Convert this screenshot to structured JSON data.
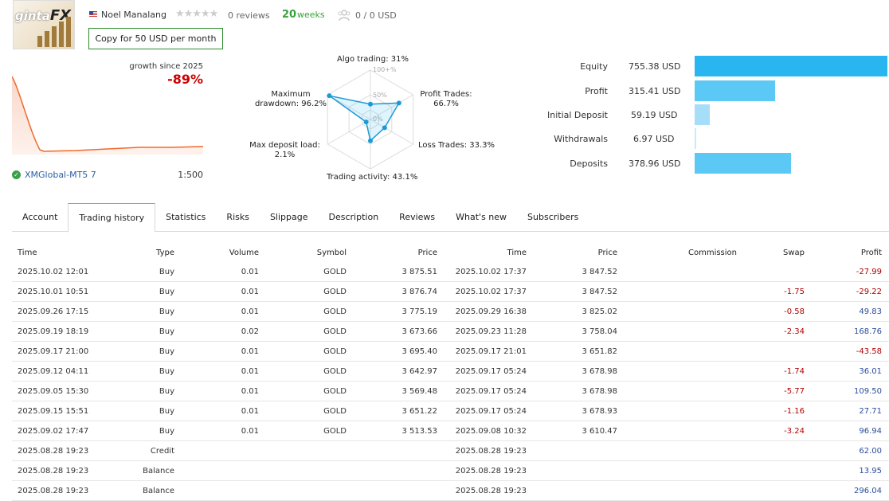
{
  "header": {
    "logo_text_a": "ginta",
    "logo_text_b": "FX",
    "author": "Noel Manalang",
    "stars": "★★★★★",
    "reviews": "0 reviews",
    "weeks_num": "20",
    "weeks_label": "weeks",
    "subscribers": "0 / 0 USD",
    "copy_button": "Copy for 50 USD per month"
  },
  "growth": {
    "label": "growth since 2025",
    "value": "-89%",
    "broker": "XMGlobal-MT5 7",
    "leverage": "1:500"
  },
  "radar": {
    "algo": "Algo trading: 31%",
    "profit_trades_1": "Profit Trades:",
    "profit_trades_2": "66.7%",
    "loss_trades": "Loss Trades: 33.3%",
    "activity": "Trading activity: 43.1%",
    "deposit_load_1": "Max deposit load:",
    "deposit_load_2": "2.1%",
    "drawdown_1": "Maximum",
    "drawdown_2": "drawdown: 96.2%",
    "tick_100": "100+%",
    "tick_50": "50%",
    "tick_0": "0%",
    "values": {
      "algo": 31,
      "profit_trades": 66.7,
      "loss_trades": 33.3,
      "activity": 43.1,
      "deposit_load": 2.1,
      "drawdown": 96.2
    }
  },
  "balance_bars": [
    {
      "label": "Equity",
      "value": "755.38 USD",
      "fraction": 1.0,
      "color": "#29b6f0"
    },
    {
      "label": "Profit",
      "value": "315.41 USD",
      "fraction": 0.417,
      "color": "#5cc8f5"
    },
    {
      "label": "Initial Deposit",
      "value": "59.19 USD",
      "fraction": 0.078,
      "color": "#a6def9"
    },
    {
      "label": "Withdrawals",
      "value": "6.97 USD",
      "fraction": 0.009,
      "color": "#c7ebfb"
    },
    {
      "label": "Deposits",
      "value": "378.96 USD",
      "fraction": 0.5,
      "color": "#5cc8f5"
    }
  ],
  "tabs": [
    "Account",
    "Trading history",
    "Statistics",
    "Risks",
    "Slippage",
    "Description",
    "Reviews",
    "What's new",
    "Subscribers"
  ],
  "table": {
    "headers": [
      "Time",
      "Type",
      "Volume",
      "Symbol",
      "Price",
      "Time",
      "Price",
      "Commission",
      "Swap",
      "Profit"
    ],
    "rows": [
      [
        "2025.10.02 12:01",
        "Buy",
        "0.01",
        "GOLD",
        "3 875.51",
        "2025.10.02 17:37",
        "3 847.52",
        "",
        "",
        "-27.99"
      ],
      [
        "2025.10.01 10:51",
        "Buy",
        "0.01",
        "GOLD",
        "3 876.74",
        "2025.10.02 17:37",
        "3 847.52",
        "",
        "-1.75",
        "-29.22"
      ],
      [
        "2025.09.26 17:15",
        "Buy",
        "0.01",
        "GOLD",
        "3 775.19",
        "2025.09.29 16:38",
        "3 825.02",
        "",
        "-0.58",
        "49.83"
      ],
      [
        "2025.09.19 18:19",
        "Buy",
        "0.02",
        "GOLD",
        "3 673.66",
        "2025.09.23 11:28",
        "3 758.04",
        "",
        "-2.34",
        "168.76"
      ],
      [
        "2025.09.17 21:00",
        "Buy",
        "0.01",
        "GOLD",
        "3 695.40",
        "2025.09.17 21:01",
        "3 651.82",
        "",
        "",
        "-43.58"
      ],
      [
        "2025.09.12 04:11",
        "Buy",
        "0.01",
        "GOLD",
        "3 642.97",
        "2025.09.17 05:24",
        "3 678.98",
        "",
        "-1.74",
        "36.01"
      ],
      [
        "2025.09.05 15:30",
        "Buy",
        "0.01",
        "GOLD",
        "3 569.48",
        "2025.09.17 05:24",
        "3 678.98",
        "",
        "-5.77",
        "109.50"
      ],
      [
        "2025.09.15 15:51",
        "Buy",
        "0.01",
        "GOLD",
        "3 651.22",
        "2025.09.17 05:24",
        "3 678.93",
        "",
        "-1.16",
        "27.71"
      ],
      [
        "2025.09.02 17:47",
        "Buy",
        "0.01",
        "GOLD",
        "3 513.53",
        "2025.09.08 10:32",
        "3 610.47",
        "",
        "-3.24",
        "96.94"
      ],
      [
        "2025.08.28 19:23",
        "Credit",
        "",
        "",
        "",
        "2025.08.28 19:23",
        "",
        "",
        "",
        "62.00"
      ],
      [
        "2025.08.28 19:23",
        "Balance",
        "",
        "",
        "",
        "2025.08.28 19:23",
        "",
        "",
        "",
        "13.95"
      ],
      [
        "2025.08.28 19:23",
        "Balance",
        "",
        "",
        "",
        "2025.08.28 19:23",
        "",
        "",
        "",
        "296.04"
      ]
    ]
  }
}
